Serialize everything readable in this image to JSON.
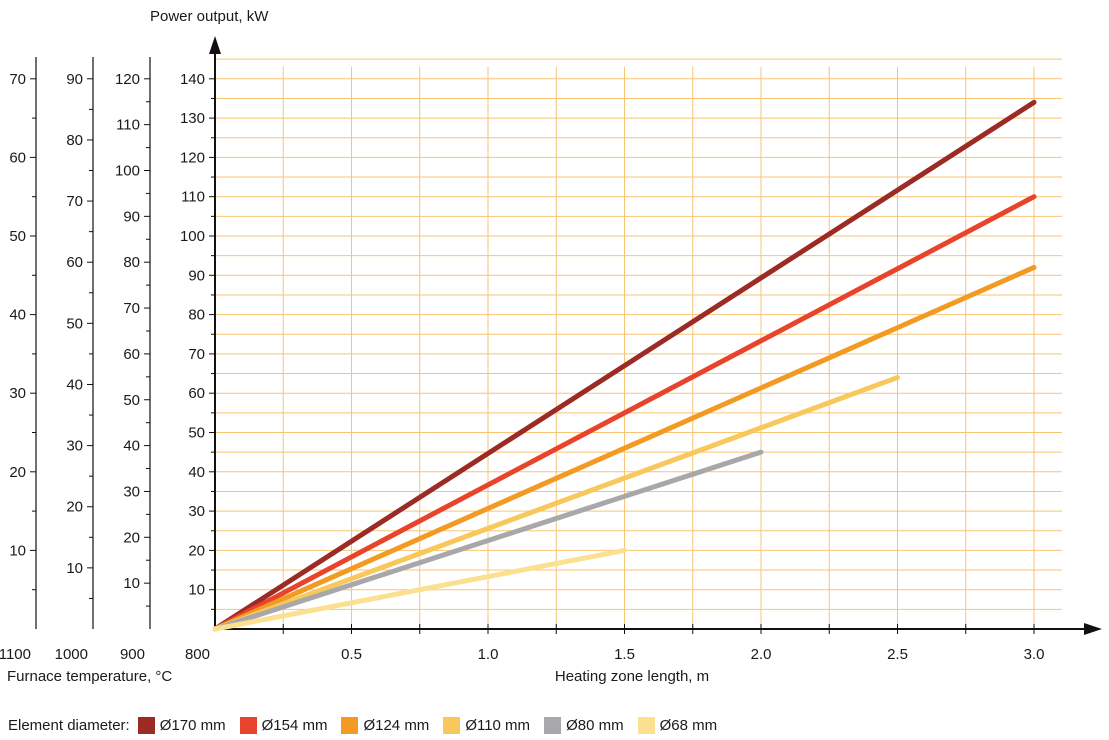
{
  "chart_data": {
    "type": "line",
    "ylabel": "Power output, kW",
    "xlabel": "Heating zone length, m",
    "extra_axes_label": "Furnace temperature, °C",
    "x_ticks": [
      "0.5",
      "1.0",
      "1.5",
      "2.0",
      "2.5",
      "3.0"
    ],
    "xlim": [
      0,
      3.0
    ],
    "ylim": [
      0,
      140
    ],
    "y_axes": [
      {
        "temperature": "800",
        "ticks": [
          "10",
          "20",
          "30",
          "40",
          "50",
          "60",
          "70",
          "80",
          "90",
          "100",
          "110",
          "120",
          "130",
          "140"
        ],
        "max": 140
      },
      {
        "temperature": "900",
        "ticks": [
          "10",
          "20",
          "30",
          "40",
          "50",
          "60",
          "70",
          "80",
          "90",
          "100",
          "110",
          "120"
        ],
        "max": 120
      },
      {
        "temperature": "1000",
        "ticks": [
          "10",
          "20",
          "30",
          "40",
          "50",
          "60",
          "70",
          "80",
          "90"
        ],
        "max": 90
      },
      {
        "temperature": "1100",
        "ticks": [
          "10",
          "20",
          "30",
          "40",
          "50",
          "60",
          "70"
        ],
        "max": 70
      }
    ],
    "grid": true,
    "legend_position": "bottom",
    "series": [
      {
        "name": "Ø170 mm",
        "color": "#9b2b24",
        "x": [
          0,
          3.0
        ],
        "y": [
          0,
          134
        ]
      },
      {
        "name": "Ø154 mm",
        "color": "#e8442b",
        "x": [
          0,
          3.0
        ],
        "y": [
          0,
          110
        ]
      },
      {
        "name": "Ø124 mm",
        "color": "#f29a22",
        "x": [
          0,
          3.0
        ],
        "y": [
          0,
          92
        ]
      },
      {
        "name": "Ø110 mm",
        "color": "#f8c85d",
        "x": [
          0,
          2.5
        ],
        "y": [
          0,
          64
        ]
      },
      {
        "name": "Ø80 mm",
        "color": "#a8a8aa",
        "x": [
          0,
          2.0
        ],
        "y": [
          0,
          45
        ]
      },
      {
        "name": "Ø68 mm",
        "color": "#fbe08f",
        "x": [
          0,
          1.5
        ],
        "y": [
          0,
          20
        ]
      }
    ]
  },
  "legend": {
    "label": "Element diameter:"
  }
}
